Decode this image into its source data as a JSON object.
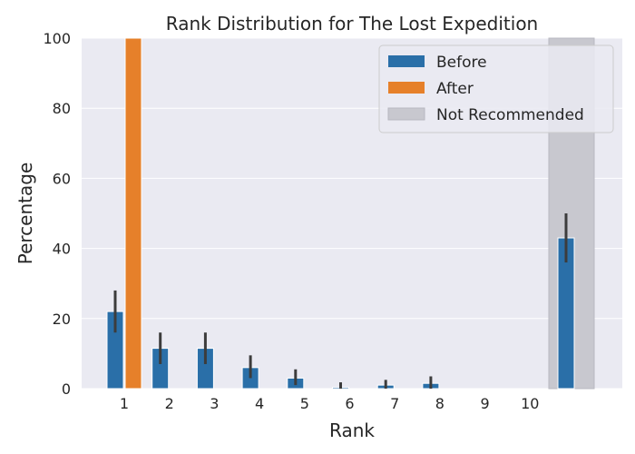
{
  "chart_data": {
    "type": "bar",
    "title": "Rank Distribution for The Lost Expedition",
    "xlabel": "Rank",
    "ylabel": "Percentage",
    "ylim": [
      0,
      100
    ],
    "yticks": [
      "0",
      "20",
      "40",
      "60",
      "80",
      "100"
    ],
    "categories": [
      "1",
      "2",
      "3",
      "4",
      "5",
      "6",
      "7",
      "8",
      "9",
      "10",
      ""
    ],
    "grid": true,
    "legend_position": "top-right",
    "series": [
      {
        "name": "Before",
        "color": "#2a6fa8",
        "values": [
          22,
          11.5,
          11.5,
          6,
          3,
          0.4,
          1,
          1.5,
          0,
          0,
          43
        ],
        "error_low": [
          16,
          7,
          7,
          3,
          1,
          0,
          0,
          0,
          0,
          0,
          36
        ],
        "error_high": [
          28,
          16,
          16,
          9.5,
          5.5,
          1.8,
          2.5,
          3.5,
          0,
          0,
          50
        ]
      },
      {
        "name": "After",
        "color": "#e6802a",
        "values": [
          100,
          0,
          0,
          0,
          0,
          0,
          0,
          0,
          0,
          0,
          0
        ]
      }
    ],
    "shaded_region": {
      "name": "Not Recommended",
      "color": "#c8c8cf",
      "category_index": 10
    }
  }
}
